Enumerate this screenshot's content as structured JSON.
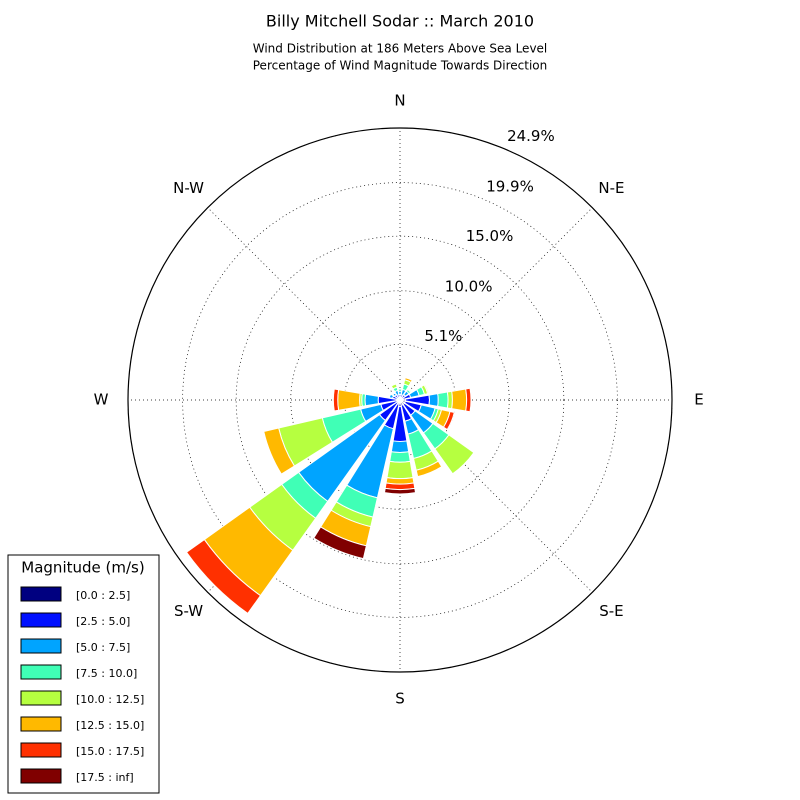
{
  "chart_data": {
    "type": "windrose",
    "title": "Billy Mitchell Sodar :: March 2010",
    "subtitle": [
      "Wind Distribution at 186 Meters Above Sea Level",
      "Percentage of Wind Magnitude Towards Direction"
    ],
    "x": [
      0,
      22.5,
      45,
      67.5,
      90,
      112.5,
      135,
      157.5,
      180,
      202.5,
      225,
      247.5,
      270,
      292.5,
      315,
      337.5
    ],
    "xticks": [
      {
        "value": 0,
        "label": "N"
      },
      {
        "value": 45,
        "label": "N-E"
      },
      {
        "value": 90,
        "label": "E"
      },
      {
        "value": 135,
        "label": "S-E"
      },
      {
        "value": 180,
        "label": "S"
      },
      {
        "value": 225,
        "label": "S-W"
      },
      {
        "value": 270,
        "label": "W"
      },
      {
        "value": 315,
        "label": "N-W"
      }
    ],
    "ylim": [
      0,
      24.9
    ],
    "yticks": [
      {
        "value": 5.1,
        "label": "5.1%"
      },
      {
        "value": 10.0,
        "label": "10.0%"
      },
      {
        "value": 15.0,
        "label": "15.0%"
      },
      {
        "value": 19.9,
        "label": "19.9%"
      },
      {
        "value": 24.9,
        "label": "24.9%"
      }
    ],
    "grid": true,
    "legend_title": "Magnitude (m/s)",
    "legend_position": "lower-left",
    "series": [
      {
        "name": "[0.0 : 2.5]",
        "color": "#000080",
        "values": [
          0.2,
          0.2,
          0.2,
          0.3,
          0.5,
          0.5,
          0.5,
          0.5,
          0.6,
          0.4,
          0.3,
          0.3,
          0.3,
          0.2,
          0.2,
          0.2
        ]
      },
      {
        "name": "[2.5 : 5.0]",
        "color": "#0010ff",
        "values": [
          0.3,
          0.3,
          0.4,
          0.7,
          2.2,
          1.5,
          1.2,
          1.5,
          3.2,
          2.3,
          2.0,
          1.5,
          1.7,
          0.5,
          0.4,
          0.3
        ]
      },
      {
        "name": "[5.0 : 7.5]",
        "color": "#00a4ff",
        "values": [
          0.3,
          0.5,
          0.4,
          0.8,
          0.8,
          1.3,
          2.0,
          1.2,
          1.0,
          6.5,
          9.1,
          1.9,
          1.2,
          0.3,
          0.2,
          0.4
        ]
      },
      {
        "name": "[7.5 : 10.0]",
        "color": "#40ffb6",
        "values": [
          0.2,
          0.5,
          0.2,
          0.5,
          0.9,
          0.3,
          1.8,
          2.3,
          0.9,
          1.8,
          1.9,
          3.6,
          0.3,
          0,
          0,
          0.3
        ]
      },
      {
        "name": "[10.0 : 12.5]",
        "color": "#b6ff40",
        "values": [
          0,
          0.4,
          0.1,
          0.3,
          0.4,
          0.3,
          2.8,
          1.1,
          1.5,
          0.9,
          3.6,
          4.1,
          0.2,
          0,
          0,
          0.3
        ]
      },
      {
        "name": "[12.5 : 15.0]",
        "color": "#ffb900",
        "values": [
          0,
          0.2,
          0,
          0.1,
          1.3,
          0.8,
          0,
          0.6,
          0.5,
          1.8,
          5.1,
          1.4,
          2.0,
          0,
          0,
          0
        ]
      },
      {
        "name": "[15.0 : 17.5]",
        "color": "#ff3000",
        "values": [
          0,
          0,
          0,
          0,
          0.4,
          0.4,
          0,
          0,
          0.5,
          0,
          2.0,
          0,
          0.4,
          0,
          0,
          0
        ]
      },
      {
        "name": "[17.5 : inf]",
        "color": "#800000",
        "values": [
          0,
          0,
          0,
          0,
          0,
          0,
          0,
          0,
          0.4,
          1.2,
          0,
          0,
          0,
          0,
          0,
          0
        ]
      }
    ]
  }
}
